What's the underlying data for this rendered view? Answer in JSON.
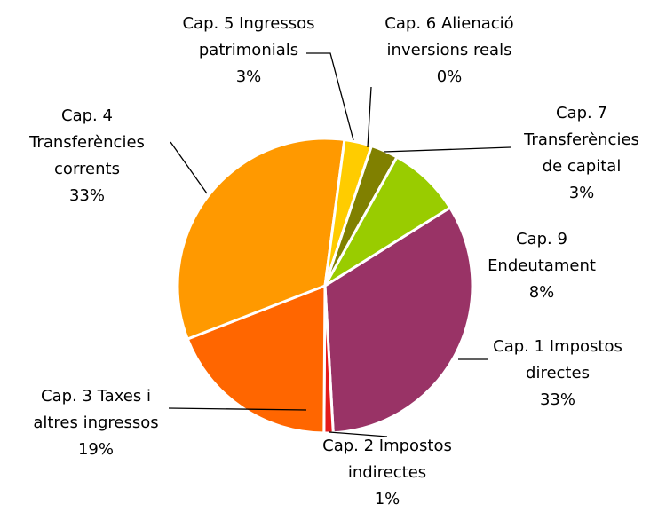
{
  "chart_data": {
    "type": "pie",
    "categories": [
      "Cap. 1 Impostos directes",
      "Cap. 2 Impostos indirectes",
      "Cap. 3 Taxes i altres ingressos",
      "Cap. 4 Transferències corrents",
      "Cap. 5 Ingressos patrimonials",
      "Cap. 6 Alienació inversions reals",
      "Cap. 7 Transferències de capital",
      "Cap. 9 Endeutament"
    ],
    "values": [
      33,
      1,
      19,
      33,
      3,
      0,
      3,
      8
    ],
    "value_labels": [
      "33%",
      "1%",
      "19%",
      "33%",
      "3%",
      "0%",
      "3%",
      "8%"
    ],
    "colors": [
      "#993366",
      "#e31a1c",
      "#ff6600",
      "#ff9900",
      "#ffcc00",
      "#666633",
      "#808000",
      "#99cc00"
    ]
  }
}
